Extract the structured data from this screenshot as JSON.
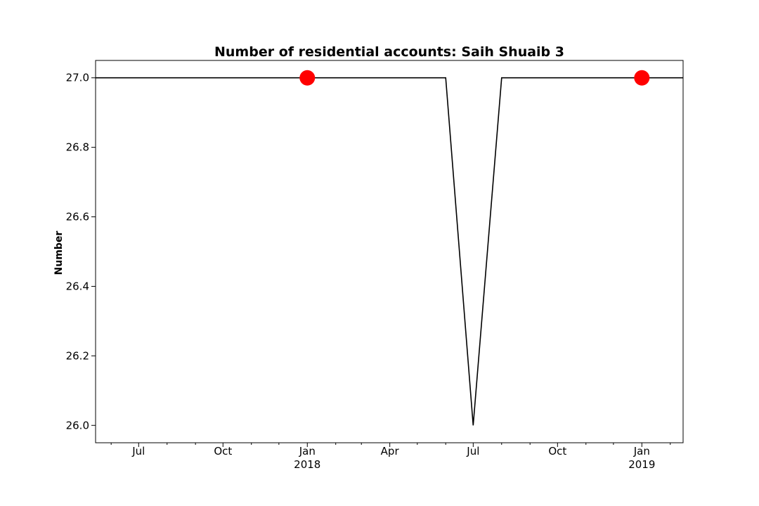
{
  "chart_data": {
    "type": "line",
    "title": "Number of residential accounts: Saih Shuaib 3",
    "xlabel": "",
    "ylabel": "Number",
    "x_range": [
      "2017-05-15",
      "2019-02-15"
    ],
    "ylim": [
      25.95,
      27.05
    ],
    "grid": false,
    "legend": "none",
    "series": [
      {
        "x": [
          "2017-05-15",
          "2018-06-01",
          "2018-07-01",
          "2018-08-01",
          "2019-02-15"
        ],
        "values": [
          27.0,
          27.0,
          26.0,
          27.0,
          27.0
        ],
        "color": "#000000"
      }
    ],
    "markers": [
      {
        "x": "2018-01-01",
        "y": 27.0,
        "color": "#ff0000"
      },
      {
        "x": "2019-01-01",
        "y": 27.0,
        "color": "#ff0000"
      }
    ],
    "y_ticks": [
      {
        "value": 26.0,
        "label": "26.0"
      },
      {
        "value": 26.2,
        "label": "26.2"
      },
      {
        "value": 26.4,
        "label": "26.4"
      },
      {
        "value": 26.6,
        "label": "26.6"
      },
      {
        "value": 26.8,
        "label": "26.8"
      },
      {
        "value": 27.0,
        "label": "27.0"
      }
    ],
    "x_major_ticks": [
      {
        "date": "2017-07-01",
        "label": "Jul",
        "sublabel": ""
      },
      {
        "date": "2017-10-01",
        "label": "Oct",
        "sublabel": ""
      },
      {
        "date": "2018-01-01",
        "label": "Jan",
        "sublabel": "2018"
      },
      {
        "date": "2018-04-01",
        "label": "Apr",
        "sublabel": ""
      },
      {
        "date": "2018-07-01",
        "label": "Jul",
        "sublabel": ""
      },
      {
        "date": "2018-10-01",
        "label": "Oct",
        "sublabel": ""
      },
      {
        "date": "2019-01-01",
        "label": "Jan",
        "sublabel": "2019"
      }
    ],
    "x_minor_ticks": [
      "2017-06-01",
      "2017-08-01",
      "2017-09-01",
      "2017-11-01",
      "2017-12-01",
      "2018-02-01",
      "2018-03-01",
      "2018-05-01",
      "2018-06-01",
      "2018-08-01",
      "2018-09-01",
      "2018-11-01",
      "2018-12-01",
      "2019-02-01"
    ]
  }
}
